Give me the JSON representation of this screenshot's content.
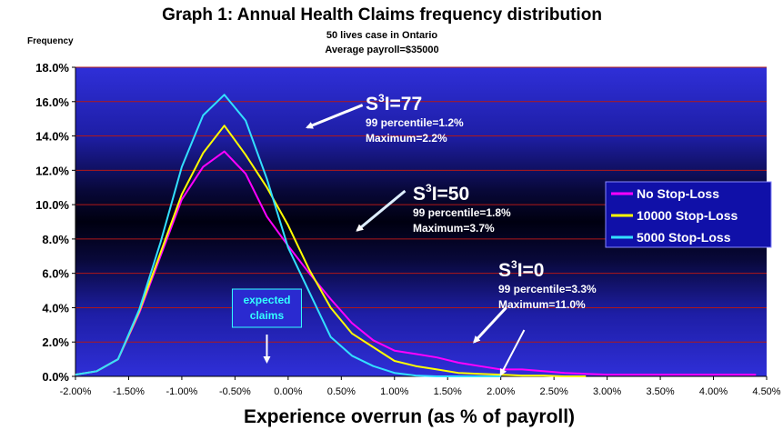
{
  "chart_data": {
    "type": "line",
    "title": "Graph 1: Annual Health Claims frequency distribution",
    "subtitle_lines": [
      "50 lives case in Ontario",
      "Average payroll=$35000"
    ],
    "ylabel": "Frequency",
    "xlabel": "Experience overrun  (as % of payroll)",
    "ylim": [
      0,
      18
    ],
    "xlim": [
      -2.0,
      4.5
    ],
    "y_ticks": [
      0,
      2,
      4,
      6,
      8,
      10,
      12,
      14,
      16,
      18
    ],
    "y_tick_labels": [
      "0.0%",
      "2.0%",
      "4.0%",
      "6.0%",
      "8.0%",
      "10.0%",
      "12.0%",
      "14.0%",
      "16.0%",
      "18.0%"
    ],
    "x_ticks": [
      -2.0,
      -1.5,
      -1.0,
      -0.5,
      0.0,
      0.5,
      1.0,
      1.5,
      2.0,
      2.5,
      3.0,
      3.5,
      4.0,
      4.5
    ],
    "x_tick_labels": [
      "-2.00%",
      "-1.50%",
      "-1.00%",
      "-0.50%",
      "0.00%",
      "0.50%",
      "1.00%",
      "1.50%",
      "2.00%",
      "2.50%",
      "3.00%",
      "3.50%",
      "4.00%",
      "4.50%"
    ],
    "grid": true,
    "legend_position": "right",
    "series": [
      {
        "name": "No Stop-Loss",
        "color": "#ff00ff",
        "x": [
          -2.0,
          -1.8,
          -1.6,
          -1.4,
          -1.2,
          -1.0,
          -0.8,
          -0.6,
          -0.4,
          -0.2,
          0.0,
          0.2,
          0.4,
          0.6,
          0.8,
          1.0,
          1.2,
          1.4,
          1.6,
          1.8,
          2.0,
          2.2,
          2.4,
          2.6,
          2.8,
          3.0,
          3.2,
          3.4,
          3.6,
          3.8,
          4.0,
          4.2,
          4.4
        ],
        "values": [
          0.1,
          0.3,
          1.0,
          3.7,
          7.0,
          10.3,
          12.2,
          13.1,
          11.8,
          9.3,
          7.6,
          6.0,
          4.5,
          3.1,
          2.1,
          1.5,
          1.3,
          1.1,
          0.8,
          0.6,
          0.4,
          0.4,
          0.3,
          0.2,
          0.15,
          0.1,
          0.1,
          0.1,
          0.1,
          0.1,
          0.1,
          0.1,
          0.1
        ]
      },
      {
        "name": "10000 Stop-Loss",
        "color": "#ffff00",
        "x": [
          -2.0,
          -1.8,
          -1.6,
          -1.4,
          -1.2,
          -1.0,
          -0.8,
          -0.6,
          -0.4,
          -0.2,
          0.0,
          0.2,
          0.4,
          0.6,
          0.8,
          1.0,
          1.2,
          1.4,
          1.6,
          1.8,
          2.0,
          2.2,
          2.4,
          2.6,
          2.8
        ],
        "values": [
          0.1,
          0.3,
          1.0,
          3.8,
          7.2,
          10.6,
          13.0,
          14.6,
          12.9,
          11.0,
          8.8,
          6.2,
          4.0,
          2.5,
          1.7,
          0.9,
          0.6,
          0.4,
          0.2,
          0.15,
          0.1,
          0.05,
          0.05,
          0.0,
          0.0
        ]
      },
      {
        "name": "5000 Stop-Loss",
        "color": "#33e0ff",
        "x": [
          -2.0,
          -1.8,
          -1.6,
          -1.4,
          -1.2,
          -1.0,
          -0.8,
          -0.6,
          -0.4,
          -0.2,
          0.0,
          0.2,
          0.4,
          0.6,
          0.8,
          1.0,
          1.2,
          1.4,
          1.6,
          1.8,
          2.0
        ],
        "values": [
          0.1,
          0.3,
          1.0,
          3.9,
          7.8,
          12.2,
          15.2,
          16.4,
          14.9,
          11.5,
          7.5,
          4.9,
          2.3,
          1.2,
          0.6,
          0.2,
          0.05,
          0.0,
          0.0,
          0.0,
          0.0
        ]
      }
    ],
    "annotations": [
      {
        "head": "S",
        "sup": "3",
        "tail": "I=77",
        "lines": [
          "99 percentile=1.2%",
          "Maximum=2.2%"
        ],
        "arrow_to": [
          0.18,
          14.5
        ],
        "arrow_from": [
          0.7,
          15.8
        ],
        "arrow_color": "#ffffff"
      },
      {
        "head": "S",
        "sup": "3",
        "tail": "I=50",
        "lines": [
          "99 percentile=1.8%",
          "Maximum=3.7%"
        ],
        "arrow_to": [
          0.65,
          8.5
        ],
        "arrow_from": [
          1.1,
          10.8
        ],
        "arrow_color": "#ddeeff"
      },
      {
        "head": "S",
        "sup": "3",
        "tail": "I=0",
        "lines": [
          "99 percentile=3.3%",
          "Maximum=11.0%"
        ],
        "arrow_to": [
          1.75,
          2.0
        ],
        "arrow_from": [
          2.05,
          4.0
        ],
        "arrow_color": "#ffffff",
        "arrow2_to": [
          2.0,
          0.1
        ],
        "arrow2_from": [
          2.22,
          2.7
        ]
      }
    ],
    "expected_claims": {
      "lines": [
        "expected",
        "claims"
      ],
      "x": -0.2
    }
  }
}
